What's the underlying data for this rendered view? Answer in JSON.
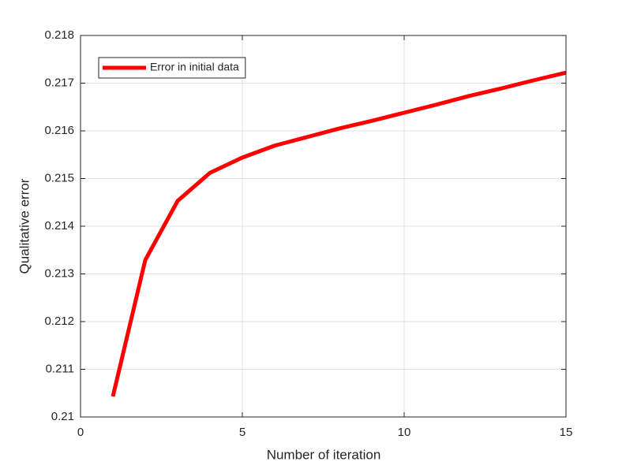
{
  "chart_data": {
    "type": "line",
    "xlabel": "Number of iteration",
    "ylabel": "Qualitative error",
    "x": [
      1,
      2,
      3,
      4,
      5,
      6,
      7,
      8,
      9,
      10,
      11,
      12,
      13,
      14,
      15
    ],
    "series": [
      {
        "name": "Error in initial data",
        "color": "#ff0000",
        "values": [
          0.21043,
          0.21329,
          0.21453,
          0.21512,
          0.21544,
          0.21569,
          0.21587,
          0.21605,
          0.21621,
          0.21638,
          0.21655,
          0.21673,
          0.21689,
          0.21706,
          0.21722
        ]
      }
    ],
    "xlim": [
      0,
      15
    ],
    "xticks": [
      0,
      5,
      10,
      15
    ],
    "ylim": [
      0.21,
      0.218
    ],
    "yticks": [
      0.21,
      0.211,
      0.212,
      0.213,
      0.214,
      0.215,
      0.216,
      0.217,
      0.218
    ],
    "grid": true,
    "legend": "upper-left"
  }
}
